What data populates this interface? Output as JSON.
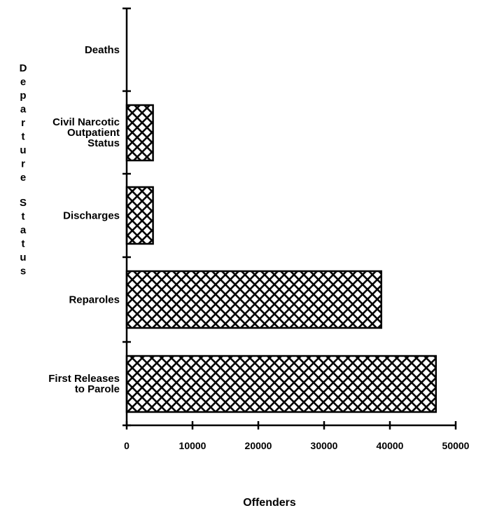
{
  "chart_data": {
    "type": "bar",
    "orientation": "horizontal",
    "categories": [
      [
        "Deaths"
      ],
      [
        "Civil Narcotic",
        "Outpatient",
        "Status"
      ],
      [
        "Discharges"
      ],
      [
        "Reparoles"
      ],
      [
        "First Releases",
        "to Parole"
      ]
    ],
    "values": [
      0,
      4000,
      4000,
      38700,
      47000
    ],
    "xlabel": "Offenders",
    "ylabel": "Departure Status",
    "xlim": [
      0,
      50000
    ],
    "xticks": [
      "0",
      "10000",
      "20000",
      "30000",
      "40000",
      "50000"
    ],
    "bar_fill": "crosshatch",
    "grid": false
  }
}
